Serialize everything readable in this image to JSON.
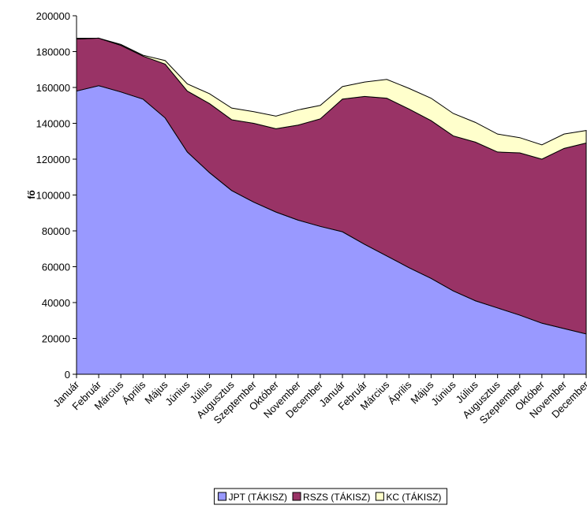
{
  "chart_data": {
    "type": "stacked_area",
    "ylabel": "fő",
    "categories": [
      "Január",
      "Február",
      "Március",
      "Április",
      "Május",
      "Június",
      "Július",
      "Augusztus",
      "Szeptember",
      "Október",
      "November",
      "December",
      "Január",
      "Február",
      "Március",
      "Április",
      "Május",
      "Június",
      "Július",
      "Augusztus",
      "Szeptember",
      "Október",
      "November",
      "December"
    ],
    "series": [
      {
        "name": "JPT (TÁKISZ)",
        "color": "#9999ff",
        "values": [
          158000,
          161000,
          157500,
          153500,
          143000,
          124000,
          112500,
          102500,
          96000,
          90500,
          86000,
          82500,
          79500,
          72500,
          66000,
          59500,
          53500,
          46500,
          41000,
          37000,
          33000,
          28500,
          25500,
          22500
        ]
      },
      {
        "name": "RSZS (TÁKISZ)",
        "color": "#993366",
        "values": [
          29000,
          26500,
          26000,
          24000,
          30000,
          34000,
          38500,
          39500,
          44000,
          46500,
          53000,
          60000,
          74000,
          82500,
          88000,
          88500,
          88000,
          86500,
          88500,
          87000,
          90500,
          91500,
          100500,
          106500
        ]
      },
      {
        "name": "KC (TÁKISZ)",
        "color": "#ffffcc",
        "values": [
          500,
          0,
          500,
          500,
          2000,
          4000,
          5500,
          6500,
          6500,
          7000,
          8500,
          7500,
          7000,
          8000,
          10500,
          11500,
          12500,
          12500,
          11000,
          10000,
          8500,
          8000,
          8000,
          7000
        ]
      }
    ],
    "ylim": [
      0,
      200000
    ],
    "yticks": [
      0,
      20000,
      40000,
      60000,
      80000,
      100000,
      120000,
      140000,
      160000,
      180000,
      200000
    ],
    "legend": "bottom"
  }
}
